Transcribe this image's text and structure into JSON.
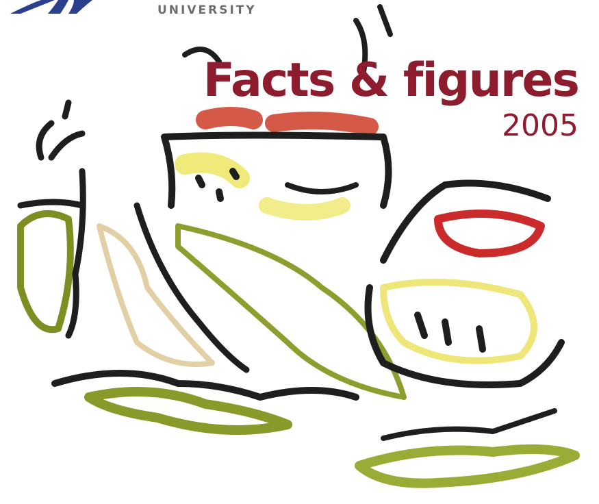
{
  "header": {
    "organization": "UNIVERSITY",
    "title": "Facts & figures",
    "year": "2005"
  }
}
